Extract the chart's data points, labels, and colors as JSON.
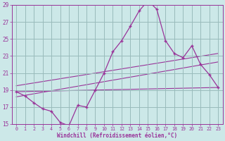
{
  "xlabel": "Windchill (Refroidissement éolien,°C)",
  "xlim": [
    -0.5,
    23.5
  ],
  "ylim": [
    15,
    29
  ],
  "yticks": [
    15,
    17,
    19,
    21,
    23,
    25,
    27,
    29
  ],
  "xticks": [
    0,
    1,
    2,
    3,
    4,
    5,
    6,
    7,
    8,
    9,
    10,
    11,
    12,
    13,
    14,
    15,
    16,
    17,
    18,
    19,
    20,
    21,
    22,
    23
  ],
  "bg_color": "#cce8e8",
  "line_color": "#993399",
  "grid_color": "#99bbbb",
  "main_x": [
    0,
    1,
    2,
    3,
    4,
    5,
    6,
    7,
    8,
    9,
    10,
    11,
    12,
    13,
    14,
    15,
    16,
    17,
    18,
    19,
    20,
    21,
    22,
    23
  ],
  "main_y": [
    18.8,
    18.3,
    17.5,
    16.8,
    16.5,
    15.2,
    14.8,
    17.2,
    17.0,
    19.0,
    21.0,
    23.5,
    24.8,
    26.5,
    28.3,
    29.5,
    28.5,
    24.8,
    23.3,
    22.8,
    24.2,
    22.0,
    20.8,
    19.3
  ],
  "line1_x": [
    0,
    23
  ],
  "line1_y": [
    18.8,
    19.3
  ],
  "line2_x": [
    0,
    23
  ],
  "line2_y": [
    18.2,
    22.3
  ],
  "line3_x": [
    0,
    23
  ],
  "line3_y": [
    19.5,
    23.3
  ]
}
